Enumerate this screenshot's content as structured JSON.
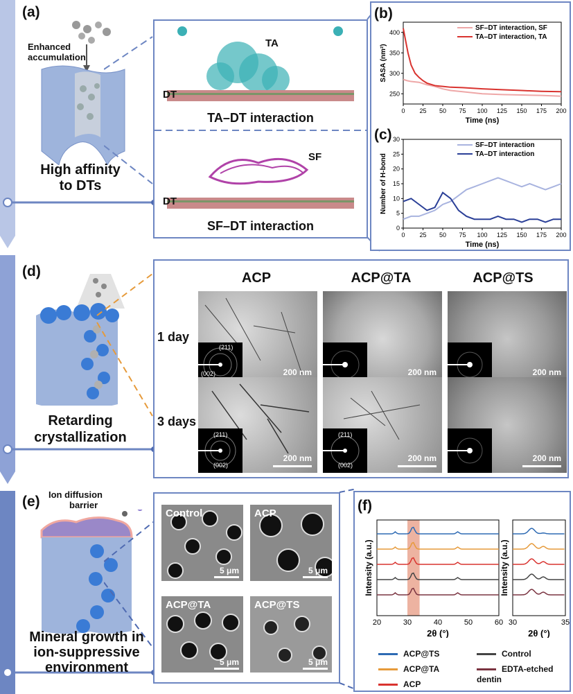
{
  "panel_labels": {
    "a": "(a)",
    "b": "(b)",
    "c": "(c)",
    "d": "(d)",
    "e": "(e)",
    "f": "(f)"
  },
  "colors": {
    "sidebar": "#6d86c2",
    "accent_orange": "#e69a3a",
    "ta_red": "#d9332f",
    "sf_pink": "#eea7a7",
    "ta_blue": "#2a3f97",
    "sf_blue": "#a8b3df"
  },
  "panel_a": {
    "enhanced": "Enhanced accumulation",
    "caption_line1": "High affinity",
    "caption_line2": "to DTs",
    "ta_label": "TA",
    "dt_label_top": "DT",
    "ta_dt": "TA–DT interaction",
    "sf_label": "SF",
    "dt_label_bottom": "DT",
    "sf_dt": "SF–DT interaction"
  },
  "panel_d": {
    "caption_line1": "Retarding",
    "caption_line2": "crystallization",
    "columns": [
      "ACP",
      "ACP@TA",
      "ACP@TS"
    ],
    "rows": [
      "1 day",
      "3 days"
    ],
    "scale": "200 nm",
    "saed_labels": {
      "top": "(211)",
      "bottom": "(002)"
    }
  },
  "panel_e": {
    "barrier_line1": "Ion diffusion",
    "barrier_line2": "barrier",
    "caption_line1": "Mineral growth in",
    "caption_line2": "ion-suppressive",
    "caption_line3": "environment",
    "sem_labels": [
      "Control",
      "ACP",
      "ACP@TA",
      "ACP@TS"
    ],
    "scale": "5 μm"
  },
  "panel_f": {
    "ylabel": "Intensity (a.u.)",
    "xlabel": "2θ (°)",
    "legend": [
      "ACP@TS",
      "Control",
      "ACP@TA",
      "EDTA-etched dentin",
      "ACP"
    ]
  },
  "chart_data": [
    {
      "type": "line",
      "id": "b",
      "xlabel": "Time (ns)",
      "ylabel": "SASA (nm²)",
      "xlim": [
        0,
        200
      ],
      "ylim": [
        225,
        425
      ],
      "xticks": [
        0,
        25,
        50,
        75,
        100,
        125,
        150,
        175,
        200
      ],
      "yticks": [
        250,
        300,
        350,
        400
      ],
      "series": [
        {
          "name": "SF–DT interaction, SF",
          "color": "#eea7a7",
          "x": [
            0,
            5,
            10,
            20,
            30,
            40,
            50,
            60,
            75,
            100,
            125,
            150,
            175,
            200
          ],
          "values": [
            285,
            282,
            280,
            278,
            272,
            268,
            262,
            258,
            255,
            250,
            248,
            247,
            246,
            244
          ]
        },
        {
          "name": "TA–DT interaction, TA",
          "color": "#d9332f",
          "x": [
            0,
            3,
            6,
            10,
            15,
            20,
            25,
            30,
            40,
            50,
            60,
            75,
            100,
            125,
            150,
            175,
            200
          ],
          "values": [
            410,
            380,
            350,
            320,
            300,
            290,
            282,
            276,
            270,
            268,
            266,
            265,
            262,
            260,
            258,
            256,
            255
          ]
        }
      ]
    },
    {
      "type": "line",
      "id": "c",
      "xlabel": "Time (ns)",
      "ylabel": "Number of H-bond",
      "xlim": [
        0,
        200
      ],
      "ylim": [
        0,
        30
      ],
      "xticks": [
        0,
        25,
        50,
        75,
        100,
        125,
        150,
        175,
        200
      ],
      "yticks": [
        0,
        5,
        10,
        15,
        20,
        25,
        30
      ],
      "series": [
        {
          "name": "SF–DT interaction",
          "color": "#a8b3df",
          "x": [
            0,
            10,
            20,
            30,
            40,
            50,
            60,
            70,
            80,
            90,
            100,
            110,
            120,
            130,
            140,
            150,
            160,
            170,
            180,
            190,
            200
          ],
          "values": [
            3,
            4,
            4,
            5,
            6,
            8,
            9,
            11,
            13,
            14,
            15,
            16,
            17,
            16,
            15,
            14,
            15,
            14,
            13,
            14,
            15
          ]
        },
        {
          "name": "TA–DT interaction",
          "color": "#2a3f97",
          "x": [
            0,
            10,
            20,
            30,
            40,
            50,
            60,
            70,
            80,
            90,
            100,
            110,
            120,
            130,
            140,
            150,
            160,
            170,
            180,
            190,
            200
          ],
          "values": [
            9,
            10,
            8,
            6,
            7,
            12,
            10,
            6,
            4,
            3,
            3,
            3,
            4,
            3,
            3,
            2,
            3,
            3,
            2,
            3,
            3
          ]
        }
      ]
    },
    {
      "type": "line",
      "id": "f-left",
      "xlabel": "2θ (°)",
      "ylabel": "Intensity (a.u.)",
      "xlim": [
        20,
        60
      ],
      "xticks": [
        20,
        30,
        40,
        50,
        60
      ],
      "series": [
        {
          "name": "ACP@TS",
          "color": "#2d6ab3"
        },
        {
          "name": "ACP@TA",
          "color": "#e69a3a"
        },
        {
          "name": "ACP",
          "color": "#d9332f"
        },
        {
          "name": "Control",
          "color": "#444444"
        },
        {
          "name": "EDTA-etched dentin",
          "color": "#7a3340"
        }
      ]
    },
    {
      "type": "line",
      "id": "f-right",
      "xlabel": "2θ (°)",
      "xlim": [
        30,
        35
      ],
      "xticks": [
        30,
        35
      ]
    }
  ]
}
